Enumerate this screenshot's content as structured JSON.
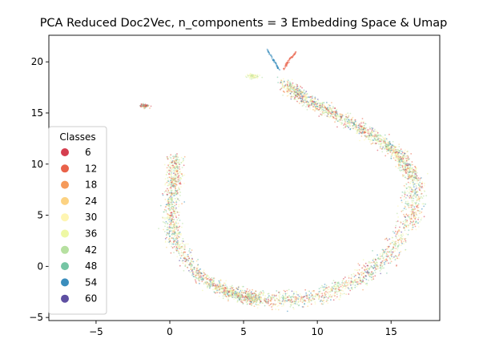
{
  "chart_data": {
    "type": "scatter",
    "title": "PCA Reduced Doc2Vec, n_components = 3 Embedding Space & Umap",
    "xlabel": "",
    "ylabel": "",
    "xlim": [
      -8.2,
      18.3
    ],
    "ylim": [
      -5.3,
      22.6
    ],
    "x_ticks": [
      -5,
      0,
      5,
      10,
      15
    ],
    "y_ticks": [
      -5,
      0,
      5,
      10,
      15,
      20
    ],
    "grid": false,
    "legend": {
      "title": "Classes",
      "placement": "lower-left",
      "entries": [
        {
          "label": "6",
          "color": "#d53e4f"
        },
        {
          "label": "12",
          "color": "#e9624a"
        },
        {
          "label": "18",
          "color": "#f59a5b"
        },
        {
          "label": "24",
          "color": "#fcd282"
        },
        {
          "label": "30",
          "color": "#fef5b2"
        },
        {
          "label": "36",
          "color": "#eef8a4"
        },
        {
          "label": "42",
          "color": "#b6e0a0"
        },
        {
          "label": "48",
          "color": "#75c5a4"
        },
        {
          "label": "54",
          "color": "#3b8ebd"
        },
        {
          "label": "60",
          "color": "#5e4fa2"
        }
      ]
    },
    "series": [
      {
        "name": "6",
        "color": "#d53e4f"
      },
      {
        "name": "12",
        "color": "#e9624a"
      },
      {
        "name": "18",
        "color": "#f59a5b"
      },
      {
        "name": "24",
        "color": "#fcd282"
      },
      {
        "name": "30",
        "color": "#fef5b2"
      },
      {
        "name": "36",
        "color": "#eef8a4"
      },
      {
        "name": "42",
        "color": "#b6e0a0"
      },
      {
        "name": "48",
        "color": "#75c5a4"
      },
      {
        "name": "54",
        "color": "#3b8ebd"
      },
      {
        "name": "60",
        "color": "#5e4fa2"
      }
    ],
    "clusters": [
      {
        "shape": "hook-left-arm",
        "path": [
          [
            0.4,
            10.8
          ],
          [
            0.3,
            8
          ],
          [
            0.0,
            5
          ],
          [
            0.5,
            2
          ],
          [
            2,
            -1
          ],
          [
            4,
            -2.6
          ],
          [
            6,
            -3.3
          ]
        ],
        "spread": 0.55
      },
      {
        "shape": "hook-bottom",
        "path": [
          [
            4,
            -2.6
          ],
          [
            7,
            -3.4
          ],
          [
            10,
            -3.0
          ],
          [
            13,
            -1.2
          ],
          [
            15,
            1.5
          ],
          [
            16.5,
            5
          ],
          [
            16.6,
            8.5
          ]
        ],
        "spread": 0.75
      },
      {
        "shape": "hook-right-arm",
        "path": [
          [
            16.6,
            8.5
          ],
          [
            15.5,
            11
          ],
          [
            13.5,
            13
          ],
          [
            11,
            15
          ],
          [
            9,
            16.5
          ],
          [
            7.8,
            17.8
          ]
        ],
        "spread": 0.55
      },
      {
        "shape": "upper-left-blob",
        "center": [
          -1.7,
          15.7
        ],
        "spread": 0.15
      },
      {
        "shape": "top-left-blob",
        "center": [
          5.6,
          18.6
        ],
        "spread": 0.2
      },
      {
        "shape": "top-blue-filament",
        "path": [
          [
            6.6,
            21.2
          ],
          [
            7.1,
            20.0
          ],
          [
            7.4,
            19.2
          ]
        ],
        "spread": 0.06,
        "color": "#3b8ebd"
      },
      {
        "shape": "top-orange-filament",
        "path": [
          [
            8.6,
            21.0
          ],
          [
            8.1,
            20.2
          ],
          [
            7.7,
            19.2
          ]
        ],
        "spread": 0.06,
        "color": "#e9624a"
      }
    ]
  }
}
